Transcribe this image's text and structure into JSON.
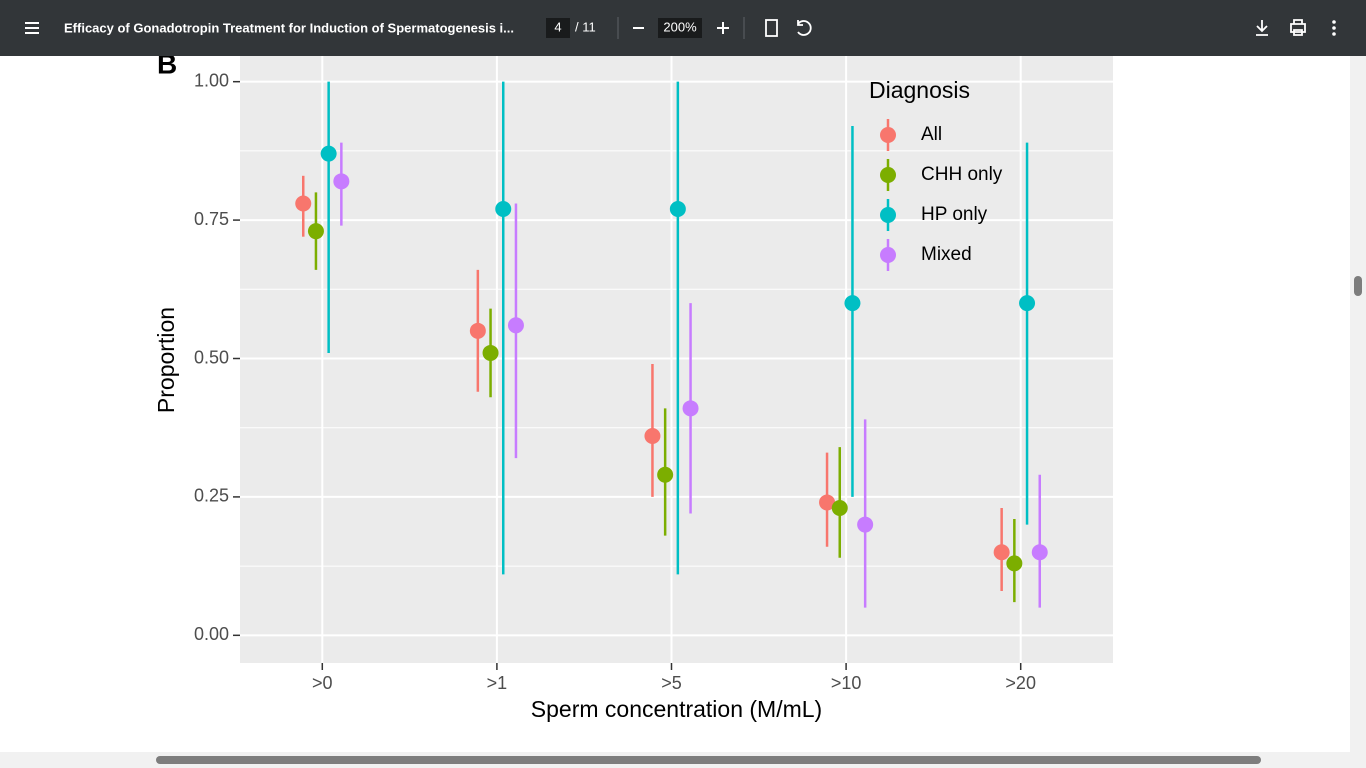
{
  "toolbar": {
    "title": "Efficacy of Gonadotropin Treatment for Induction of Spermatogenesis i...",
    "page": "4",
    "page_count": "/ 11",
    "zoom": "200%"
  },
  "chart_data": {
    "type": "pointrange",
    "panel_label": "B",
    "x_label": "Sperm concentration (M/mL)",
    "y_label": "Proportion",
    "legend_title": "Diagnosis",
    "legend": "top-right",
    "grid": true,
    "categories": [
      ">0",
      ">1",
      ">5",
      ">10",
      ">20"
    ],
    "series": [
      {
        "name": "All",
        "color": "#f8766d",
        "values": [
          0.78,
          0.55,
          0.36,
          0.24,
          0.15
        ],
        "lower": [
          0.72,
          0.44,
          0.25,
          0.16,
          0.08
        ],
        "upper": [
          0.83,
          0.66,
          0.49,
          0.33,
          0.23
        ]
      },
      {
        "name": "CHH only",
        "color": "#7cae00",
        "values": [
          0.73,
          0.51,
          0.29,
          0.23,
          0.13
        ],
        "lower": [
          0.66,
          0.43,
          0.18,
          0.14,
          0.06
        ],
        "upper": [
          0.8,
          0.59,
          0.41,
          0.34,
          0.21
        ]
      },
      {
        "name": "HP only",
        "color": "#00bfc4",
        "values": [
          0.87,
          0.77,
          0.77,
          0.6,
          0.6
        ],
        "lower": [
          0.51,
          0.11,
          0.11,
          0.25,
          0.2
        ],
        "upper": [
          1.0,
          1.0,
          1.0,
          0.92,
          0.89
        ]
      },
      {
        "name": "Mixed",
        "color": "#c77cff",
        "values": [
          0.82,
          0.56,
          0.41,
          0.2,
          0.15
        ],
        "lower": [
          0.74,
          0.32,
          0.22,
          0.05,
          0.05
        ],
        "upper": [
          0.89,
          0.78,
          0.6,
          0.39,
          0.29
        ]
      }
    ],
    "ylim": [
      -0.05,
      1.05
    ],
    "yticks": [
      {
        "value": 0,
        "label": "0.00"
      },
      {
        "value": 0.25,
        "label": "0.25"
      },
      {
        "value": 0.5,
        "label": "0.50"
      },
      {
        "value": 0.75,
        "label": "0.75"
      },
      {
        "value": 1,
        "label": "1.00"
      }
    ]
  }
}
